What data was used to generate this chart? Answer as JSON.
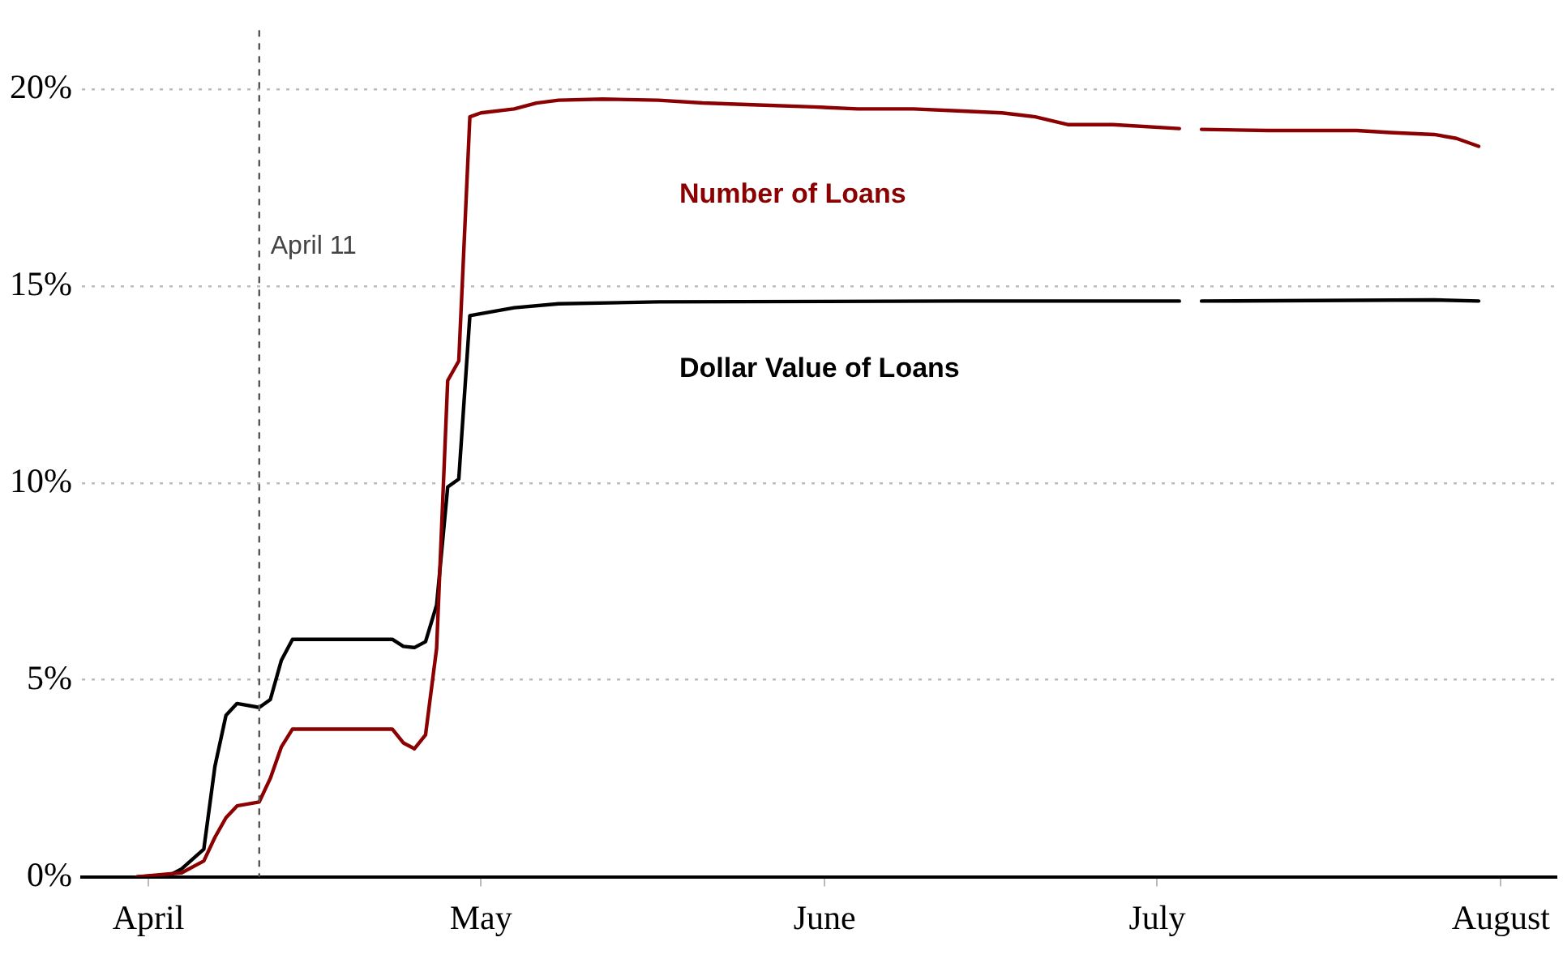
{
  "chart_data": {
    "type": "line",
    "xlim": [
      "--03-26",
      "--08-06"
    ],
    "ylim": [
      0,
      21.5
    ],
    "xticks": [
      {
        "value": "--04-01",
        "label": "April"
      },
      {
        "value": "--05-01",
        "label": "May"
      },
      {
        "value": "--06-01",
        "label": "June"
      },
      {
        "value": "--07-01",
        "label": "July"
      },
      {
        "value": "--08-01",
        "label": "August"
      }
    ],
    "yticks": [
      {
        "value": 0,
        "label": "0%"
      },
      {
        "value": 5,
        "label": "5%"
      },
      {
        "value": 10,
        "label": "10%"
      },
      {
        "value": 15,
        "label": "15%"
      },
      {
        "value": 20,
        "label": "20%"
      }
    ],
    "grid": "y",
    "legend": false,
    "marker": "none",
    "line_style": "solid",
    "ref_lines": [
      {
        "axis": "x",
        "value": "--04-11",
        "label": "April 11",
        "color": "#555555",
        "line_style": "dashed"
      }
    ],
    "series": [
      {
        "name": "Number of Loans",
        "color": "#8b0000",
        "x": [
          "--03-31",
          "--04-04",
          "--04-06",
          "--04-07",
          "--04-08",
          "--04-09",
          "--04-11",
          "--04-12",
          "--04-13",
          "--04-14",
          "--04-23",
          "--04-24",
          "--04-25",
          "--04-26",
          "--04-27",
          "--04-28",
          "--04-29",
          "--04-30",
          "--05-01",
          "--05-04",
          "--05-06",
          "--05-08",
          "--05-12",
          "--05-17",
          "--05-21",
          "--05-26",
          "--05-31",
          "--06-04",
          "--06-09",
          "--06-13",
          "--06-17",
          "--06-20",
          "--06-23",
          "--06-27",
          "--07-03",
          "--07-04",
          "--07-05",
          "--07-11",
          "--07-19",
          "--07-22",
          "--07-26",
          "--07-28",
          "--07-30"
        ],
        "values": [
          0,
          0.1,
          0.4,
          1.0,
          1.5,
          1.8,
          1.9,
          2.5,
          3.3,
          3.75,
          3.75,
          3.4,
          3.25,
          3.6,
          5.8,
          12.6,
          13.1,
          19.3,
          19.4,
          19.5,
          19.65,
          19.72,
          19.75,
          19.72,
          19.65,
          19.6,
          19.55,
          19.5,
          19.5,
          19.45,
          19.4,
          19.3,
          19.1,
          19.1,
          19.0,
          null,
          18.98,
          18.95,
          18.95,
          18.9,
          18.85,
          18.75,
          18.55
        ]
      },
      {
        "name": "Dollar Value of Loans",
        "color": "#000000",
        "x": [
          "--03-31",
          "--04-03",
          "--04-04",
          "--04-06",
          "--04-07",
          "--04-08",
          "--04-09",
          "--04-11",
          "--04-12",
          "--04-13",
          "--04-14",
          "--04-23",
          "--04-24",
          "--04-25",
          "--04-26",
          "--04-27",
          "--04-28",
          "--04-29",
          "--04-30",
          "--05-04",
          "--05-08",
          "--05-17",
          "--06-13",
          "--07-03",
          "--07-04",
          "--07-05",
          "--07-26",
          "--07-30"
        ],
        "values": [
          0,
          0.05,
          0.2,
          0.7,
          2.8,
          4.1,
          4.4,
          4.3,
          4.5,
          5.5,
          6.03,
          6.03,
          5.85,
          5.82,
          5.97,
          6.9,
          9.9,
          10.1,
          14.25,
          14.45,
          14.55,
          14.6,
          14.62,
          14.62,
          null,
          14.62,
          14.65,
          14.62
        ]
      }
    ]
  }
}
